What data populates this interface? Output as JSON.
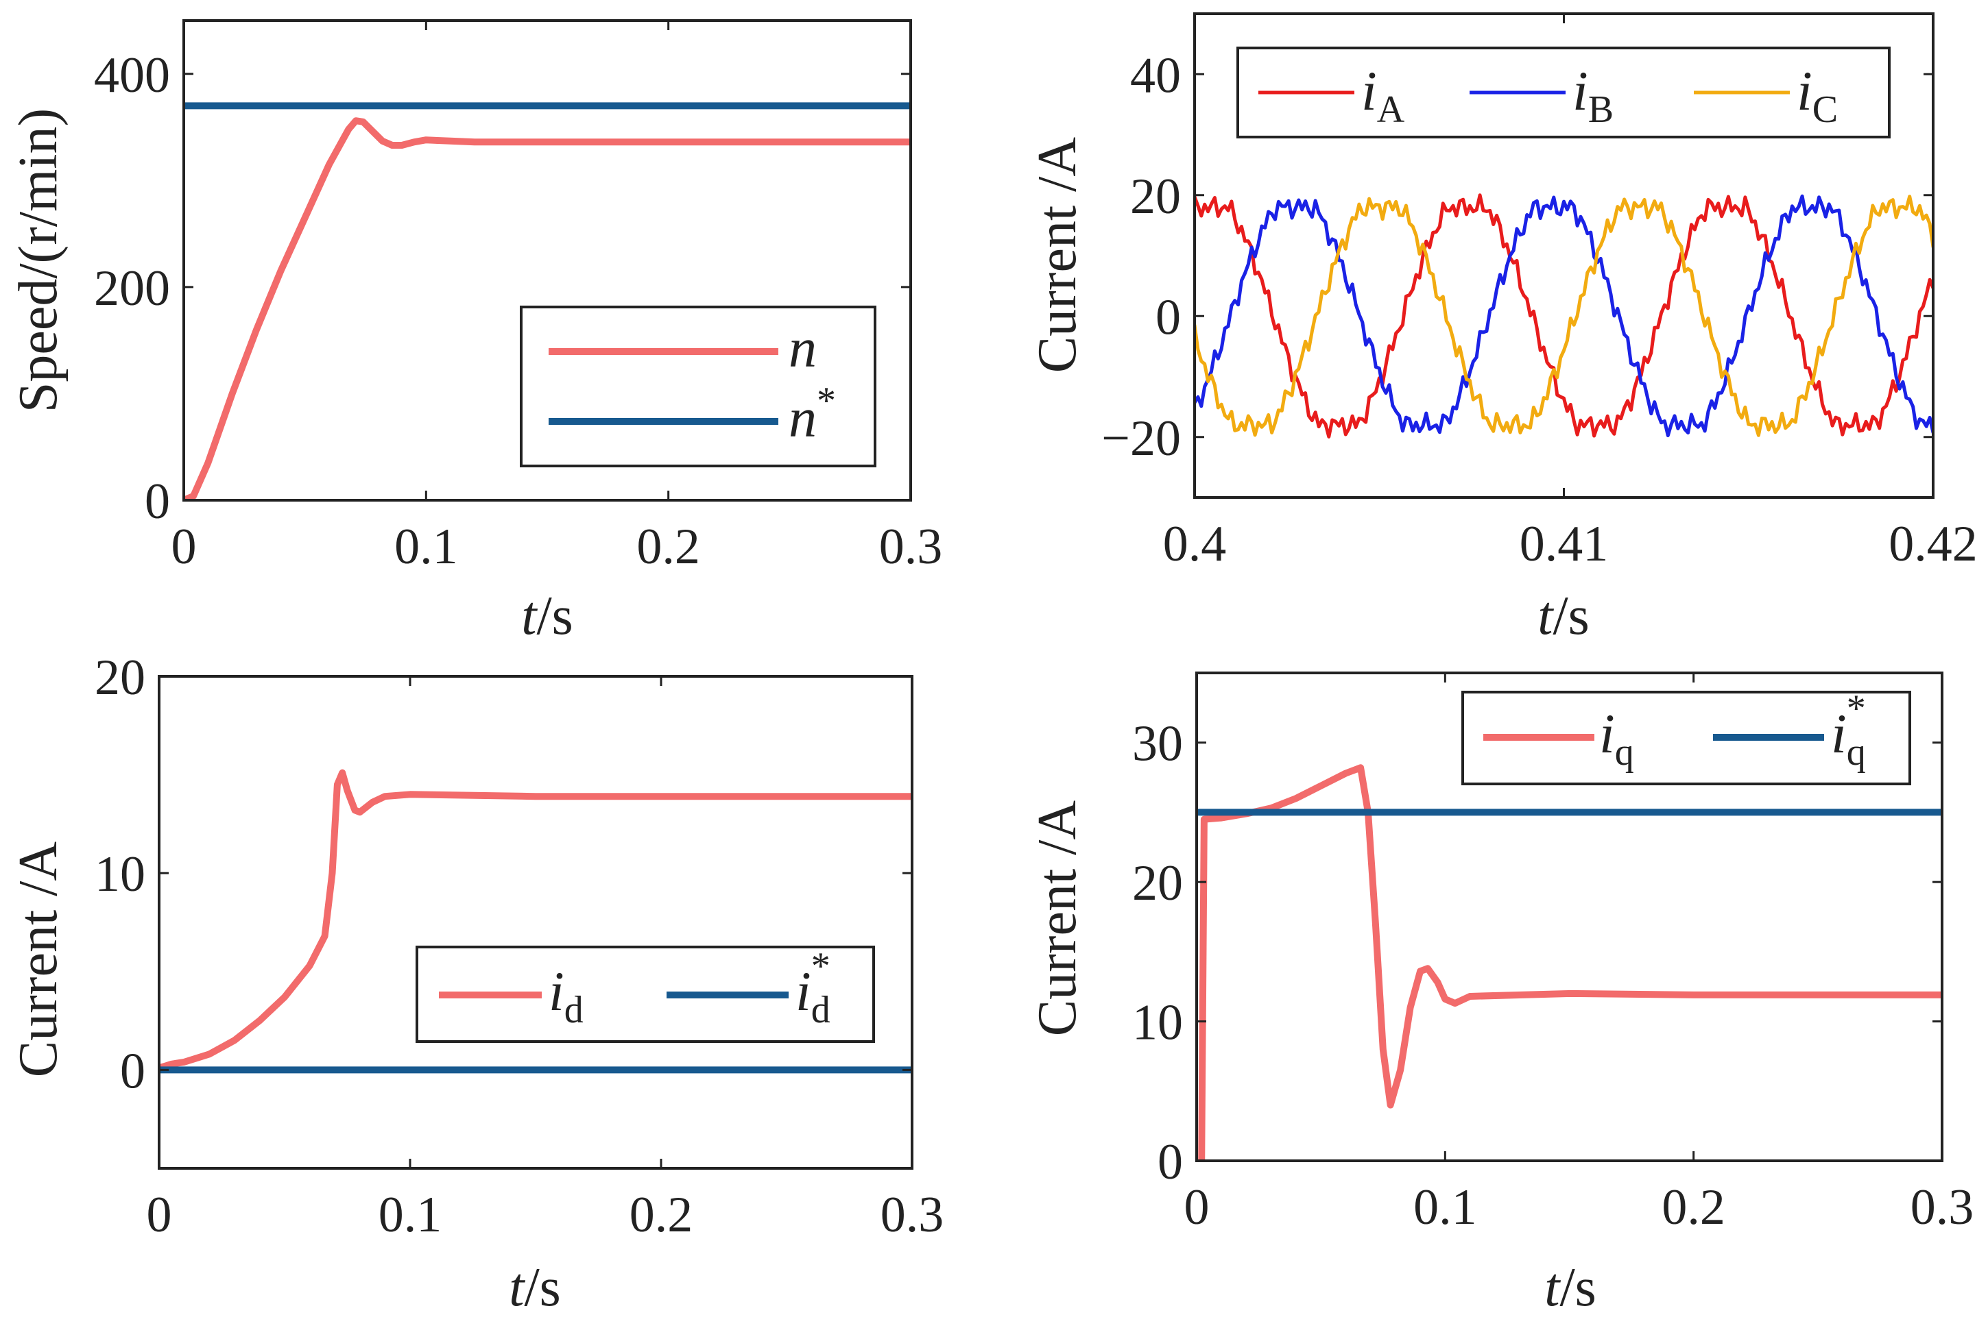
{
  "chart_data": [
    {
      "id": "speed",
      "type": "line",
      "xlabel": {
        "var": "t",
        "unit": "/s"
      },
      "ylabel": "Speed/(r/min)",
      "xlim": [
        0,
        0.3
      ],
      "ylim": [
        0,
        450
      ],
      "xticks": [
        0,
        0.1,
        0.2,
        0.3
      ],
      "xtick_labels": [
        "0",
        "0.1",
        "0.2",
        "0.3"
      ],
      "yticks": [
        0,
        200,
        400
      ],
      "ytick_labels": [
        "0",
        "200",
        "400"
      ],
      "legend": {
        "position": "center-right",
        "entries": [
          {
            "name": "n",
            "sup": ""
          },
          {
            "name": "n",
            "sup": "*"
          }
        ]
      },
      "series": [
        {
          "name": "n",
          "color": "#f26b6b",
          "points": [
            [
              0,
              0
            ],
            [
              0.004,
              4
            ],
            [
              0.01,
              35
            ],
            [
              0.02,
              100
            ],
            [
              0.03,
              160
            ],
            [
              0.04,
              215
            ],
            [
              0.05,
              265
            ],
            [
              0.06,
              315
            ],
            [
              0.068,
              348
            ],
            [
              0.071,
              356
            ],
            [
              0.074,
              355
            ],
            [
              0.078,
              346
            ],
            [
              0.082,
              337
            ],
            [
              0.086,
              333
            ],
            [
              0.09,
              333
            ],
            [
              0.095,
              336
            ],
            [
              0.1,
              338
            ],
            [
              0.11,
              337
            ],
            [
              0.12,
              336
            ],
            [
              0.15,
              336
            ],
            [
              0.2,
              336
            ],
            [
              0.25,
              336
            ],
            [
              0.3,
              336
            ]
          ]
        },
        {
          "name": "n*",
          "color": "#17598f",
          "points": [
            [
              0,
              370
            ],
            [
              0.3,
              370
            ]
          ]
        }
      ]
    },
    {
      "id": "phase-currents",
      "type": "line",
      "xlabel": {
        "var": "t",
        "unit": "/s"
      },
      "ylabel": "Current /A",
      "xlim": [
        0.4,
        0.42
      ],
      "ylim": [
        -30,
        50
      ],
      "xticks": [
        0.4,
        0.41,
        0.42
      ],
      "xtick_labels": [
        "0.4",
        "0.41",
        "0.42"
      ],
      "yticks": [
        -20,
        0,
        20,
        40
      ],
      "ytick_labels": [
        "−20",
        "0",
        "20",
        "40"
      ],
      "legend": {
        "position": "top",
        "entries": [
          {
            "name": "i",
            "sub": "A"
          },
          {
            "name": "i",
            "sub": "B"
          },
          {
            "name": "i",
            "sub": "C"
          }
        ]
      },
      "series": [
        {
          "name": "iA",
          "color": "#e81c1c",
          "amplitude": 18,
          "period": 0.007,
          "phase_deg": 70
        },
        {
          "name": "iB",
          "color": "#1a22e6",
          "amplitude": 18,
          "period": 0.007,
          "phase_deg": -50
        },
        {
          "name": "iC",
          "color": "#f2ab10",
          "amplitude": 18,
          "period": 0.007,
          "phase_deg": 190
        }
      ]
    },
    {
      "id": "id-current",
      "type": "line",
      "xlabel": {
        "var": "t",
        "unit": "/s"
      },
      "ylabel": "Current /A",
      "xlim": [
        0,
        0.3
      ],
      "ylim": [
        -5,
        20
      ],
      "xticks": [
        0,
        0.1,
        0.2,
        0.3
      ],
      "xtick_labels": [
        "0",
        "0.1",
        "0.2",
        "0.3"
      ],
      "yticks": [
        0,
        10,
        20
      ],
      "ytick_labels": [
        "0",
        "10",
        "20"
      ],
      "legend": {
        "position": "lower-right",
        "entries": [
          {
            "name": "i",
            "sub": "d",
            "sup": ""
          },
          {
            "name": "i",
            "sub": "d",
            "sup": "*"
          }
        ]
      },
      "series": [
        {
          "name": "id",
          "color": "#f26b6b",
          "points": [
            [
              0,
              0.1
            ],
            [
              0.005,
              0.3
            ],
            [
              0.01,
              0.4
            ],
            [
              0.02,
              0.8
            ],
            [
              0.03,
              1.5
            ],
            [
              0.04,
              2.5
            ],
            [
              0.05,
              3.7
            ],
            [
              0.06,
              5.3
            ],
            [
              0.066,
              6.8
            ],
            [
              0.069,
              10
            ],
            [
              0.071,
              14.5
            ],
            [
              0.073,
              15.1
            ],
            [
              0.075,
              14.2
            ],
            [
              0.078,
              13.2
            ],
            [
              0.08,
              13.1
            ],
            [
              0.085,
              13.6
            ],
            [
              0.09,
              13.9
            ],
            [
              0.1,
              14
            ],
            [
              0.15,
              13.9
            ],
            [
              0.2,
              13.9
            ],
            [
              0.25,
              13.9
            ],
            [
              0.3,
              13.9
            ]
          ]
        },
        {
          "name": "id*",
          "color": "#17598f",
          "points": [
            [
              0,
              0
            ],
            [
              0.3,
              0
            ]
          ]
        }
      ]
    },
    {
      "id": "iq-current",
      "type": "line",
      "xlabel": {
        "var": "t",
        "unit": "/s"
      },
      "ylabel": "Current /A",
      "xlim": [
        0,
        0.3
      ],
      "ylim": [
        0,
        35
      ],
      "xticks": [
        0,
        0.1,
        0.2,
        0.3
      ],
      "xtick_labels": [
        "0",
        "0.1",
        "0.2",
        "0.3"
      ],
      "yticks": [
        0,
        10,
        20,
        30
      ],
      "ytick_labels": [
        "0",
        "10",
        "20",
        "30"
      ],
      "legend": {
        "position": "top-left",
        "entries": [
          {
            "name": "i",
            "sub": "q",
            "sup": ""
          },
          {
            "name": "i",
            "sub": "q",
            "sup": "*"
          }
        ]
      },
      "series": [
        {
          "name": "iq",
          "color": "#f26b6b",
          "points": [
            [
              0.002,
              0
            ],
            [
              0.003,
              24.5
            ],
            [
              0.01,
              24.6
            ],
            [
              0.02,
              24.9
            ],
            [
              0.03,
              25.3
            ],
            [
              0.04,
              26
            ],
            [
              0.05,
              26.9
            ],
            [
              0.06,
              27.8
            ],
            [
              0.066,
              28.2
            ],
            [
              0.069,
              25
            ],
            [
              0.072,
              17
            ],
            [
              0.075,
              8
            ],
            [
              0.078,
              4
            ],
            [
              0.082,
              6.5
            ],
            [
              0.086,
              11
            ],
            [
              0.09,
              13.6
            ],
            [
              0.093,
              13.8
            ],
            [
              0.097,
              12.8
            ],
            [
              0.1,
              11.6
            ],
            [
              0.104,
              11.3
            ],
            [
              0.11,
              11.8
            ],
            [
              0.15,
              12
            ],
            [
              0.2,
              11.9
            ],
            [
              0.25,
              11.9
            ],
            [
              0.3,
              11.9
            ]
          ]
        },
        {
          "name": "iq*",
          "color": "#17598f",
          "points": [
            [
              0,
              25
            ],
            [
              0.3,
              25
            ]
          ]
        }
      ]
    }
  ]
}
